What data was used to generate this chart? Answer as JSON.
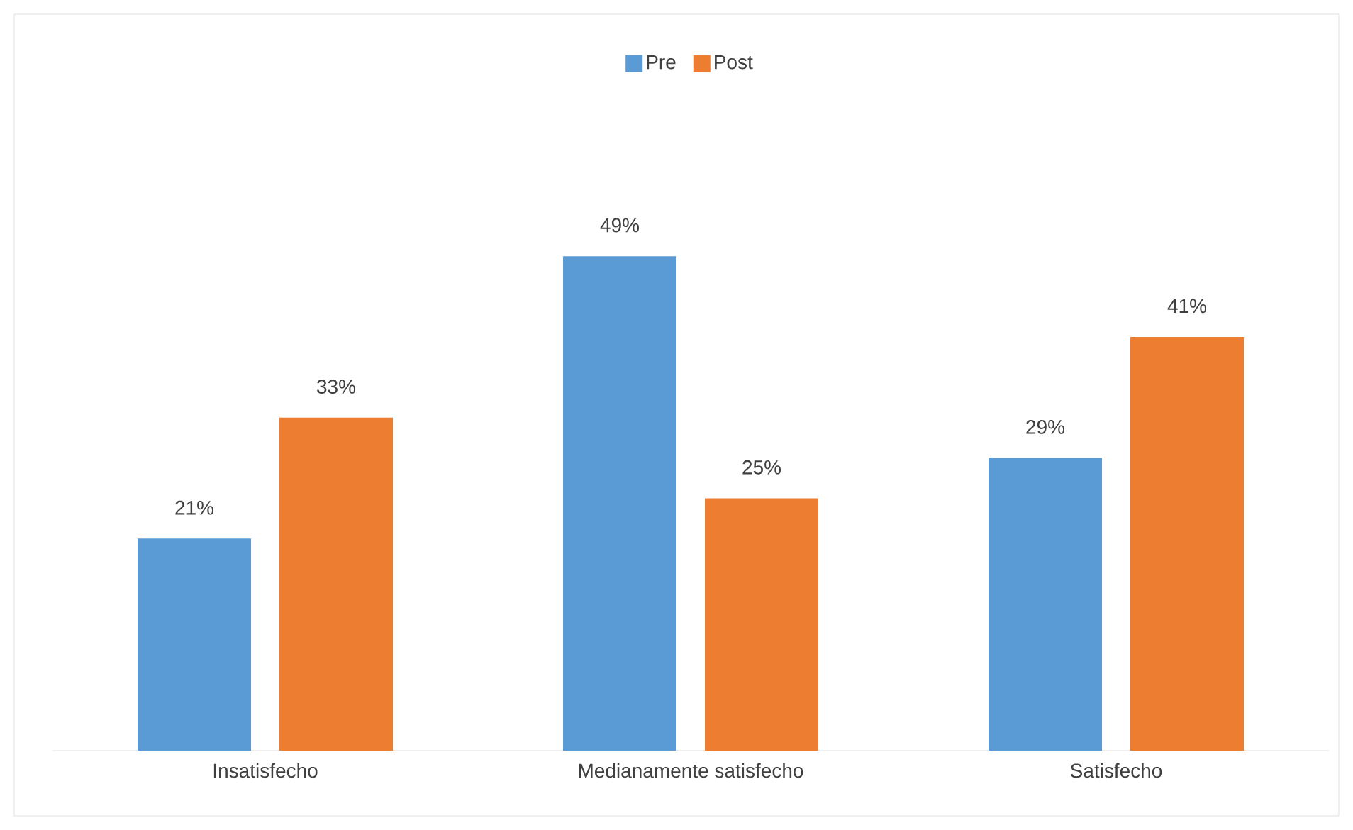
{
  "chart_data": {
    "type": "bar",
    "categories": [
      "Insatisfecho",
      "Medianamente satisfecho",
      "Satisfecho"
    ],
    "series": [
      {
        "name": "Pre",
        "color": "#5b9bd5",
        "values": [
          21,
          49,
          29
        ],
        "value_labels": [
          "21%",
          "49%",
          "29%"
        ]
      },
      {
        "name": "Post",
        "color": "#ed7d31",
        "values": [
          33,
          25,
          41
        ],
        "value_labels": [
          "33%",
          "25%",
          "41%"
        ]
      }
    ],
    "legend": "top"
  }
}
